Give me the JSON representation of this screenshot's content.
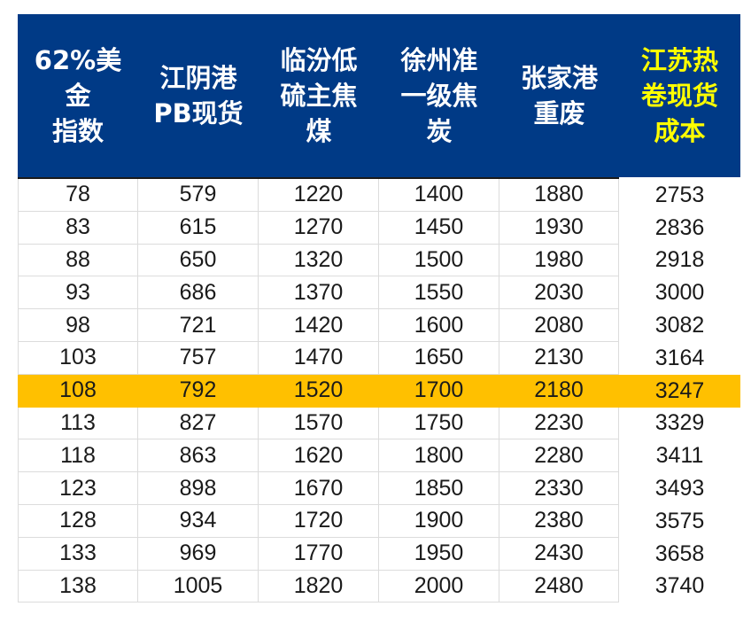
{
  "columns": [
    {
      "lines": [
        "62%美金",
        "指数"
      ]
    },
    {
      "lines": [
        "江阴港",
        "PB现货"
      ]
    },
    {
      "lines": [
        "临汾低",
        "硫主焦",
        "煤"
      ]
    },
    {
      "lines": [
        "徐州准",
        "一级焦",
        "炭"
      ]
    },
    {
      "lines": [
        "张家港",
        "重废"
      ]
    },
    {
      "lines": [
        "江苏热",
        "卷现货",
        "成本"
      ]
    }
  ],
  "colors": {
    "header_bg": "#003a86",
    "header_text": "#ffffff",
    "accent_header_text": "#ffff00",
    "highlight_row": "#ffc000"
  },
  "highlight_row_index": 6,
  "rows": [
    [
      "78",
      "579",
      "1220",
      "1400",
      "1880",
      "2753"
    ],
    [
      "83",
      "615",
      "1270",
      "1450",
      "1930",
      "2836"
    ],
    [
      "88",
      "650",
      "1320",
      "1500",
      "1980",
      "2918"
    ],
    [
      "93",
      "686",
      "1370",
      "1550",
      "2030",
      "3000"
    ],
    [
      "98",
      "721",
      "1420",
      "1600",
      "2080",
      "3082"
    ],
    [
      "103",
      "757",
      "1470",
      "1650",
      "2130",
      "3164"
    ],
    [
      "108",
      "792",
      "1520",
      "1700",
      "2180",
      "3247"
    ],
    [
      "113",
      "827",
      "1570",
      "1750",
      "2230",
      "3329"
    ],
    [
      "118",
      "863",
      "1620",
      "1800",
      "2280",
      "3411"
    ],
    [
      "123",
      "898",
      "1670",
      "1850",
      "2330",
      "3493"
    ],
    [
      "128",
      "934",
      "1720",
      "1900",
      "2380",
      "3575"
    ],
    [
      "133",
      "969",
      "1770",
      "1950",
      "2430",
      "3658"
    ],
    [
      "138",
      "1005",
      "1820",
      "2000",
      "2480",
      "3740"
    ]
  ]
}
